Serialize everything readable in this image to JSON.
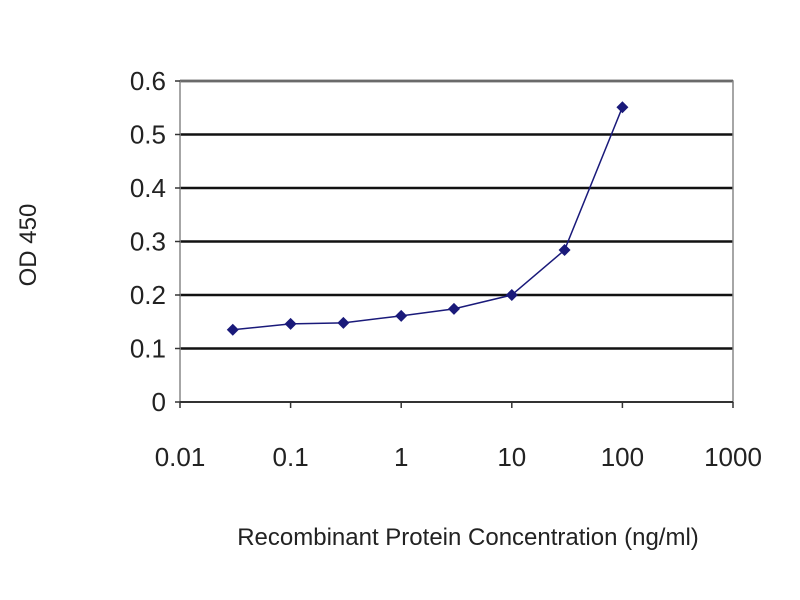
{
  "chart_data": {
    "type": "line",
    "title": "",
    "xlabel": "Recombinant Protein Concentration (ng/ml)",
    "ylabel": "OD 450",
    "x_scale": "log",
    "xlim": [
      0.01,
      1000
    ],
    "ylim": [
      0,
      0.6
    ],
    "x_ticks": [
      "0.01",
      "0.1",
      "1",
      "10",
      "100",
      "1000"
    ],
    "y_ticks": [
      "0",
      "0.1",
      "0.2",
      "0.3",
      "0.4",
      "0.5",
      "0.6"
    ],
    "grid": "horizontal",
    "series": [
      {
        "x": [
          0.03,
          0.1,
          0.3,
          1,
          3,
          10,
          30,
          100
        ],
        "y": [
          0.135,
          0.146,
          0.148,
          0.161,
          0.174,
          0.2,
          0.284,
          0.551
        ],
        "color": "#1a1a7a",
        "marker": "diamond"
      }
    ]
  }
}
